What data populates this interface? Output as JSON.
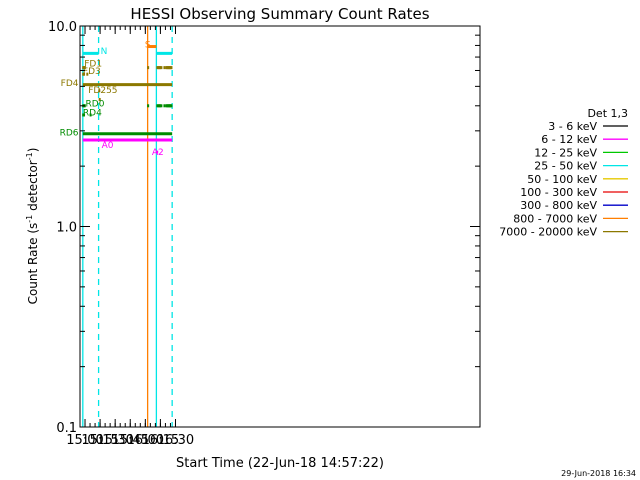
{
  "chart_data": {
    "type": "line",
    "title": "HESSI Observing Summary Count Rates",
    "xlabel": "Start Time (22-Jun-18 14:57:22)",
    "ylabel": "Count Rate (s",
    "ylabel_sup1": "-1",
    "ylabel_mid": " detector",
    "ylabel_sup2": "-1",
    "ylabel_end": ")",
    "x_unit": "minutes of day",
    "xlim": [
      895,
      1293
    ],
    "ylim": [
      0.1,
      10.0
    ],
    "yscale": "log",
    "x_ticks": [
      {
        "v": 900,
        "label": "15:00"
      },
      {
        "v": 915,
        "label": "15:15"
      },
      {
        "v": 930,
        "label": "15:30"
      },
      {
        "v": 945,
        "label": "15:45"
      },
      {
        "v": 960,
        "label": "16:00"
      },
      {
        "v": 975,
        "label": "16:15"
      },
      {
        "v": 990,
        "label": "16:30"
      }
    ],
    "y_ticks": [
      {
        "v": 0.1,
        "label": "0.1"
      },
      {
        "v": 1.0,
        "label": "1.0"
      },
      {
        "v": 10.0,
        "label": "10.0"
      }
    ],
    "legend": {
      "title": "Det 1,3",
      "placement": "right",
      "entries": [
        {
          "label": "3 - 6 keV",
          "color": "#000000"
        },
        {
          "label": "6 - 12 keV",
          "color": "#ff00ff"
        },
        {
          "label": "12 - 25 keV",
          "color": "#00c800"
        },
        {
          "label": "25 - 50 keV",
          "color": "#00e6e6"
        },
        {
          "label": "50 - 100 keV",
          "color": "#e6c800"
        },
        {
          "label": "100 - 300 keV",
          "color": "#e60000"
        },
        {
          "label": "300 - 800 keV",
          "color": "#0000c8"
        },
        {
          "label": "800 - 7000 keV",
          "color": "#ff7f00"
        },
        {
          "label": "7000 - 20000 keV",
          "color": "#8c7800"
        }
      ]
    },
    "vlines": [
      {
        "x": 897.8,
        "color": "#00e6e6",
        "dash": false
      },
      {
        "x": 913.5,
        "color": "#00e6e6",
        "dash": true
      },
      {
        "x": 962.3,
        "color": "#ff7f00",
        "dash": false
      },
      {
        "x": 971.0,
        "color": "#00e6e6",
        "dash": false
      },
      {
        "x": 986.7,
        "color": "#00e6e6",
        "dash": true
      }
    ],
    "flag_lines": [
      {
        "y": 7.3,
        "color": "#00e6e6",
        "segments": [
          [
            897.8,
            913.5
          ],
          [
            971.0,
            986.7
          ]
        ]
      },
      {
        "y": 7.9,
        "color": "#ff7f00",
        "segments": [
          [
            962.3,
            971.0
          ]
        ]
      },
      {
        "y": 5.1,
        "color": "#8c7800",
        "segments": [
          [
            897.8,
            986.7
          ]
        ]
      },
      {
        "y": 2.9,
        "color": "#008c00",
        "segments": [
          [
            897.8,
            986.7
          ]
        ]
      },
      {
        "y": 2.7,
        "color": "#ff00ff",
        "segments": [
          [
            897.8,
            986.7
          ]
        ]
      }
    ],
    "flag_dots": [
      {
        "y": 6.2,
        "color": "#8c7800",
        "x": [
          898.2,
          899,
          899.8,
          962.8,
          972,
          973,
          974,
          974.8,
          976,
          979,
          981,
          981.8,
          982.8,
          983.6,
          984.4,
          985.2,
          986
        ]
      },
      {
        "y": 5.75,
        "color": "#8c7800",
        "x": [
          898.2,
          899,
          902.3
        ]
      },
      {
        "y": 4.75,
        "color": "#8c7800",
        "x": [
          914.2
        ]
      },
      {
        "y": 4.3,
        "color": "#8c7800",
        "x": [
          914.6
        ]
      },
      {
        "y": 4.0,
        "color": "#008c00",
        "x": [
          898.2,
          899,
          899.8,
          962.8,
          972,
          973,
          974,
          974.8,
          976,
          979,
          981,
          981.8,
          982.8,
          983.6,
          984.4,
          985.2,
          986
        ]
      },
      {
        "y": 3.6,
        "color": "#008c00",
        "x": [
          898.2,
          899,
          905.5
        ]
      },
      {
        "y": 2.35,
        "color": "#ff00ff",
        "x": [
          971.8
        ]
      }
    ],
    "annotations": [
      {
        "text": "N",
        "x": 915.5,
        "y": 7.5,
        "color": "#00e6e6"
      },
      {
        "text": "S",
        "x": 959.5,
        "y": 8.1,
        "color": "#ff7f00"
      },
      {
        "text": "FD1",
        "x": 899.2,
        "y": 6.5,
        "color": "#8c7800"
      },
      {
        "text": "FD3",
        "x": 897.9,
        "y": 5.95,
        "color": "#8c7800"
      },
      {
        "text": "FD4",
        "x": 893.5,
        "y": 5.2,
        "color": "#8c7800",
        "anchor": "end"
      },
      {
        "text": "FD255",
        "x": 903.2,
        "y": 4.8,
        "color": "#8c7800"
      },
      {
        "text": "RD0",
        "x": 900.5,
        "y": 4.1,
        "color": "#008c00"
      },
      {
        "text": "RD4",
        "x": 897.9,
        "y": 3.7,
        "color": "#008c00"
      },
      {
        "text": "RD6",
        "x": 893.5,
        "y": 2.95,
        "color": "#008c00",
        "anchor": "end"
      },
      {
        "text": "A0",
        "x": 916.5,
        "y": 2.55,
        "color": "#ff00ff"
      },
      {
        "text": "A2",
        "x": 966.5,
        "y": 2.35,
        "color": "#ff00ff"
      }
    ]
  },
  "timestamp": "29-Jun-2018 16:34"
}
